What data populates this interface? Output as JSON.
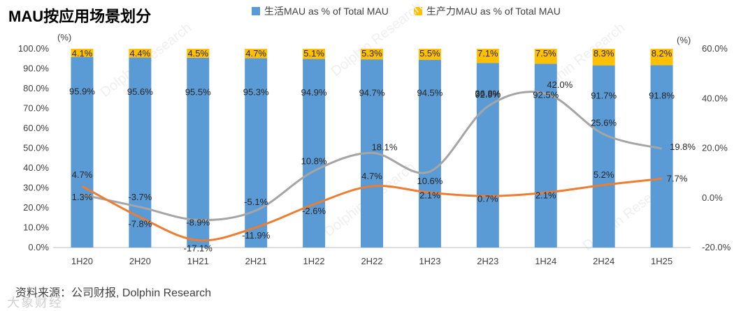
{
  "title": "MAU按应用场景划分",
  "source": "资料来源：公司财报, Dolphin Research",
  "watermark": "Dolphin Research",
  "footer_watermark": "大象财经",
  "colors": {
    "life": "#5b9bd5",
    "productivity": "#ffc000",
    "line_gray": "#a5a5a5",
    "line_orange": "#ed7d31"
  },
  "chart_data": {
    "type": "bar",
    "stacked": true,
    "categories": [
      "1H20",
      "2H20",
      "1H21",
      "2H21",
      "1H22",
      "2H22",
      "1H23",
      "2H23",
      "1H24",
      "2H24",
      "1H25"
    ],
    "series": [
      {
        "name": "生活MAU as % of Total MAU",
        "values": [
          95.9,
          95.6,
          95.5,
          95.3,
          94.9,
          94.7,
          94.5,
          92.9,
          92.5,
          91.7,
          91.8
        ],
        "labels": [
          "95.9%",
          "95.6%",
          "95.5%",
          "95.3%",
          "94.9%",
          "94.7%",
          "94.5%",
          "92.9%",
          "92.5%",
          "91.7%",
          "91.8%"
        ],
        "axis": "left"
      },
      {
        "name": "生产力MAU as % of Total MAU",
        "values": [
          4.1,
          4.4,
          4.5,
          4.7,
          5.1,
          5.3,
          5.5,
          7.1,
          7.5,
          8.3,
          8.2
        ],
        "labels": [
          "4.1%",
          "4.4%",
          "4.5%",
          "4.7%",
          "5.1%",
          "5.3%",
          "5.5%",
          "7.1%",
          "7.5%",
          "8.3%",
          "8.2%"
        ],
        "axis": "left"
      },
      {
        "name": "",
        "type": "line",
        "values": [
          1.3,
          -3.7,
          -8.9,
          -5.1,
          10.8,
          18.1,
          10.6,
          36.8,
          42.0,
          25.6,
          19.8
        ],
        "labels": [
          "1.3%",
          "-3.7%",
          "-8.9%",
          "-5.1%",
          "10.8%",
          "18.1%",
          "10.6%",
          "36.8%",
          "42.0%",
          "25.6%",
          "19.8%"
        ],
        "axis": "right"
      },
      {
        "name": "",
        "type": "line",
        "values": [
          4.7,
          -7.8,
          -17.1,
          -11.9,
          -2.6,
          4.7,
          2.1,
          0.7,
          2.1,
          5.2,
          7.7
        ],
        "labels": [
          "4.7%",
          "-7.8%",
          "-17.1%",
          "-11.9%",
          "-2.6%",
          "4.7%",
          "2.1%",
          "0.7%",
          "2.1%",
          "5.2%",
          "7.7%"
        ],
        "axis": "right"
      }
    ],
    "y_left": {
      "unit": "(%)",
      "lim": [
        0,
        100
      ],
      "ticks": [
        "0.0%",
        "10.0%",
        "20.0%",
        "30.0%",
        "40.0%",
        "50.0%",
        "60.0%",
        "70.0%",
        "80.0%",
        "90.0%",
        "100.0%"
      ]
    },
    "y_right": {
      "unit": "(%)",
      "lim": [
        -20,
        60
      ],
      "ticks": [
        "-20.0%",
        "0.0%",
        "20.0%",
        "40.0%",
        "60.0%"
      ]
    },
    "legend_position": "top",
    "grid": false
  }
}
